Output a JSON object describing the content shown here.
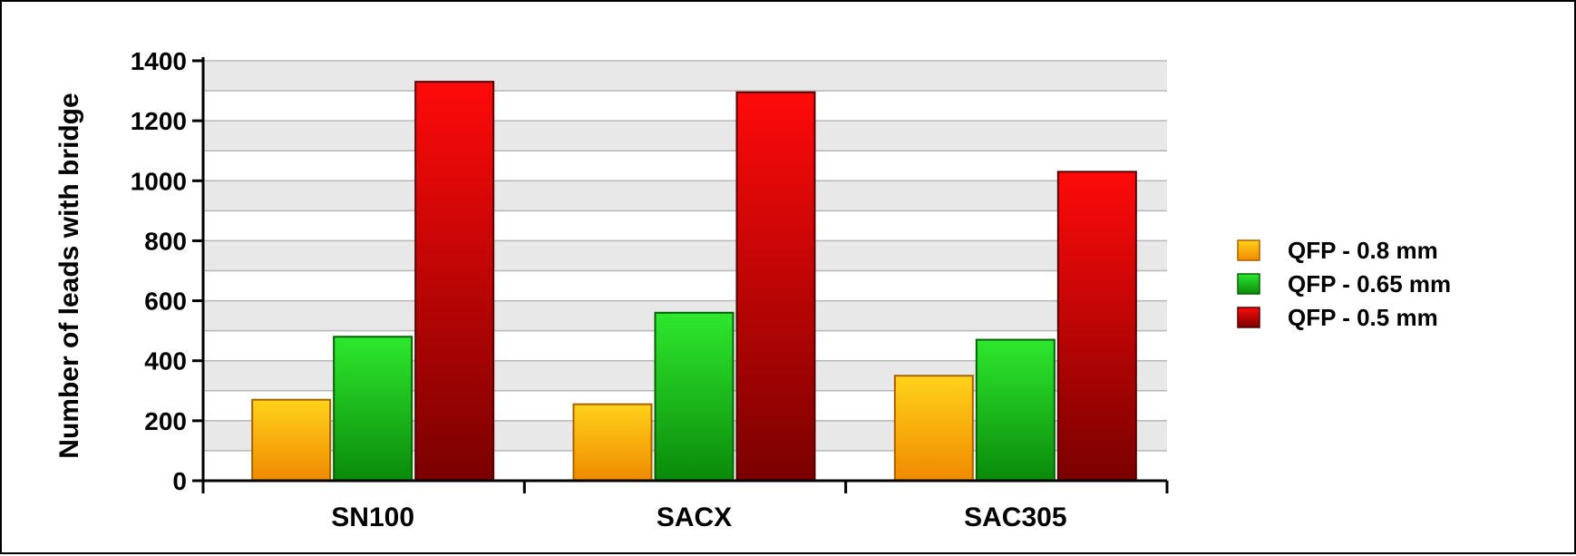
{
  "chart_data": {
    "type": "bar",
    "categories": [
      "SN100",
      "SACX",
      "SAC305"
    ],
    "series": [
      {
        "name": "QFP - 0.8 mm",
        "values": [
          270,
          255,
          350
        ],
        "color": "#f5b800"
      },
      {
        "name": "QFP - 0.65 mm",
        "values": [
          480,
          560,
          470
        ],
        "color": "#1fd11f"
      },
      {
        "name": "QFP - 0.5 mm",
        "values": [
          1330,
          1295,
          1030
        ],
        "color": "#e00000"
      }
    ],
    "title": "",
    "xlabel": "",
    "ylabel": "Number of leads with bridge",
    "ylim": [
      0,
      1400
    ],
    "yticks": [
      0,
      200,
      400,
      600,
      800,
      1000,
      1200,
      1400
    ],
    "grid": true,
    "legend_position": "right"
  }
}
